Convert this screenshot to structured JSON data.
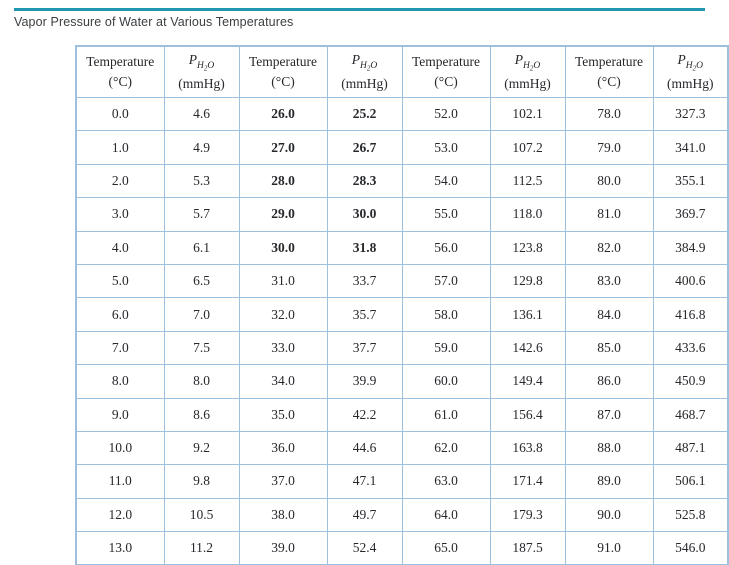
{
  "page": {
    "title": "Vapor Pressure of Water at Various Temperatures",
    "accent_color": "#2196B1",
    "table_border_color": "#9DC0DE"
  },
  "table": {
    "header": {
      "temp_line1": "Temperature",
      "temp_line2": "(°C)",
      "pressure_symbol": "P",
      "pressure_sub_h": "H",
      "pressure_sub_2": "2",
      "pressure_sub_o": "O",
      "pressure_line2": "(mmHg)"
    },
    "bold": {
      "rows": [
        0,
        1,
        2,
        3,
        4
      ],
      "cols": [
        2,
        3
      ]
    },
    "rows": [
      [
        "0.0",
        "4.6",
        "26.0",
        "25.2",
        "52.0",
        "102.1",
        "78.0",
        "327.3"
      ],
      [
        "1.0",
        "4.9",
        "27.0",
        "26.7",
        "53.0",
        "107.2",
        "79.0",
        "341.0"
      ],
      [
        "2.0",
        "5.3",
        "28.0",
        "28.3",
        "54.0",
        "112.5",
        "80.0",
        "355.1"
      ],
      [
        "3.0",
        "5.7",
        "29.0",
        "30.0",
        "55.0",
        "118.0",
        "81.0",
        "369.7"
      ],
      [
        "4.0",
        "6.1",
        "30.0",
        "31.8",
        "56.0",
        "123.8",
        "82.0",
        "384.9"
      ],
      [
        "5.0",
        "6.5",
        "31.0",
        "33.7",
        "57.0",
        "129.8",
        "83.0",
        "400.6"
      ],
      [
        "6.0",
        "7.0",
        "32.0",
        "35.7",
        "58.0",
        "136.1",
        "84.0",
        "416.8"
      ],
      [
        "7.0",
        "7.5",
        "33.0",
        "37.7",
        "59.0",
        "142.6",
        "85.0",
        "433.6"
      ],
      [
        "8.0",
        "8.0",
        "34.0",
        "39.9",
        "60.0",
        "149.4",
        "86.0",
        "450.9"
      ],
      [
        "9.0",
        "8.6",
        "35.0",
        "42.2",
        "61.0",
        "156.4",
        "87.0",
        "468.7"
      ],
      [
        "10.0",
        "9.2",
        "36.0",
        "44.6",
        "62.0",
        "163.8",
        "88.0",
        "487.1"
      ],
      [
        "11.0",
        "9.8",
        "37.0",
        "47.1",
        "63.0",
        "171.4",
        "89.0",
        "506.1"
      ],
      [
        "12.0",
        "10.5",
        "38.0",
        "49.7",
        "64.0",
        "179.3",
        "90.0",
        "525.8"
      ],
      [
        "13.0",
        "11.2",
        "39.0",
        "52.4",
        "65.0",
        "187.5",
        "91.0",
        "546.0"
      ]
    ]
  }
}
